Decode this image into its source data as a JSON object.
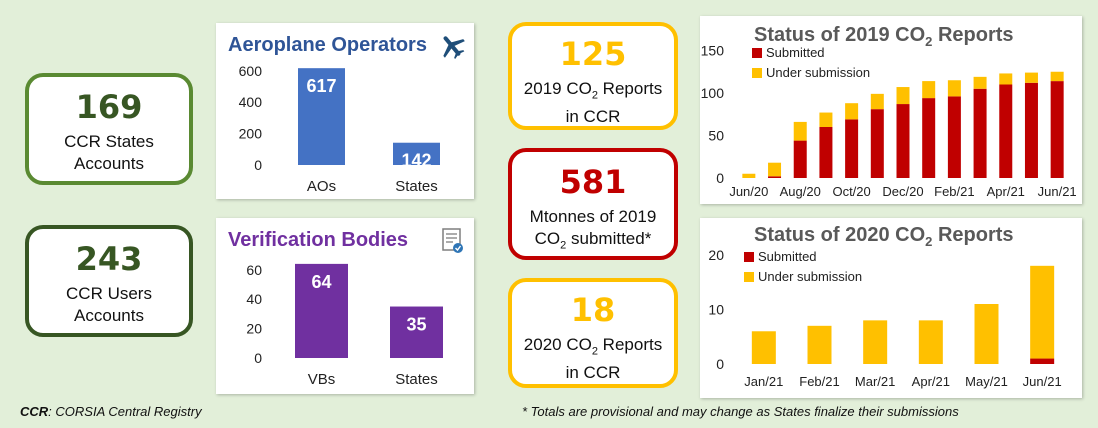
{
  "stats": {
    "ccr_states": {
      "value": "169",
      "line1": "CCR States",
      "line2": "Accounts",
      "border": "#5a8a32"
    },
    "ccr_users": {
      "value": "243",
      "line1": "CCR Users",
      "line2": "Accounts",
      "border": "#375623"
    },
    "reports_2019": {
      "value": "125",
      "line1_pre": "2019 CO",
      "line1_sub": "2",
      "line1_post": " Reports",
      "line2": "in CCR",
      "border": "#ffc000"
    },
    "mtonnes": {
      "value": "581",
      "line1": "Mtonnes of 2019",
      "line2_pre": "CO",
      "line2_sub": "2",
      "line2_post": " submitted*",
      "border": "#c00000"
    },
    "reports_2020": {
      "value": "18",
      "line1_pre": "2020 CO",
      "line1_sub": "2",
      "line1_post": " Reports",
      "line2": "in CCR",
      "border": "#ffc000"
    }
  },
  "footer": {
    "ccr_abbr": "CCR",
    "ccr_def": ": CORSIA Central Registry",
    "note": "* Totals are provisional and may change as States finalize their submissions"
  },
  "chart_data": [
    {
      "id": "aeroplane",
      "type": "bar",
      "title": "Aeroplane Operators",
      "title_color": "#2f5597",
      "icon": "airplane-icon",
      "color": "#4472c4",
      "categories": [
        "AOs",
        "States"
      ],
      "values": [
        617,
        142
      ],
      "ylim": [
        0,
        650
      ],
      "yticks": [
        0,
        200,
        400,
        600
      ]
    },
    {
      "id": "verification",
      "type": "bar",
      "title": "Verification Bodies",
      "title_color": "#7030a0",
      "icon": "certificate-icon",
      "color": "#7030a0",
      "categories": [
        "VBs",
        "States"
      ],
      "values": [
        64,
        35
      ],
      "ylim": [
        0,
        68
      ],
      "yticks": [
        0,
        20,
        40,
        60
      ]
    },
    {
      "id": "status2019",
      "type": "bar",
      "stacked": true,
      "title_pre": "Status of 2019 CO",
      "title_sub": "2",
      "title_post": " Reports",
      "categories": [
        "Jun/20",
        "Jul/20",
        "Aug/20",
        "Sep/20",
        "Oct/20",
        "Nov/20",
        "Dec/20",
        "Jan/21",
        "Feb/21",
        "Mar/21",
        "Apr/21",
        "May/21",
        "Jun/21"
      ],
      "xtick_labels": [
        "Jun/20",
        "Aug/20",
        "Oct/20",
        "Dec/20",
        "Feb/21",
        "Apr/21",
        "Jun/21"
      ],
      "series": [
        {
          "name": "Submitted",
          "color": "#c00000",
          "values": [
            0,
            2,
            44,
            60,
            69,
            81,
            87,
            94,
            96,
            105,
            110,
            112,
            114
          ]
        },
        {
          "name": "Under submission",
          "color": "#ffc000",
          "values": [
            5,
            16,
            22,
            17,
            19,
            18,
            20,
            20,
            19,
            14,
            13,
            12,
            11
          ]
        }
      ],
      "ylim": [
        0,
        160
      ],
      "yticks": [
        0,
        50,
        100,
        150
      ],
      "legend": "top-left"
    },
    {
      "id": "status2020",
      "type": "bar",
      "stacked": true,
      "title_pre": "Status of 2020 CO",
      "title_sub": "2",
      "title_post": " Reports",
      "categories": [
        "Jan/21",
        "Feb/21",
        "Mar/21",
        "Apr/21",
        "May/21",
        "Jun/21"
      ],
      "series": [
        {
          "name": "Submitted",
          "color": "#c00000",
          "values": [
            0,
            0,
            0,
            0,
            0,
            1
          ]
        },
        {
          "name": "Under submission",
          "color": "#ffc000",
          "values": [
            6,
            7,
            8,
            8,
            11,
            17
          ]
        }
      ],
      "ylim": [
        0,
        22
      ],
      "yticks": [
        0,
        10,
        20
      ],
      "legend": "top-left"
    }
  ]
}
